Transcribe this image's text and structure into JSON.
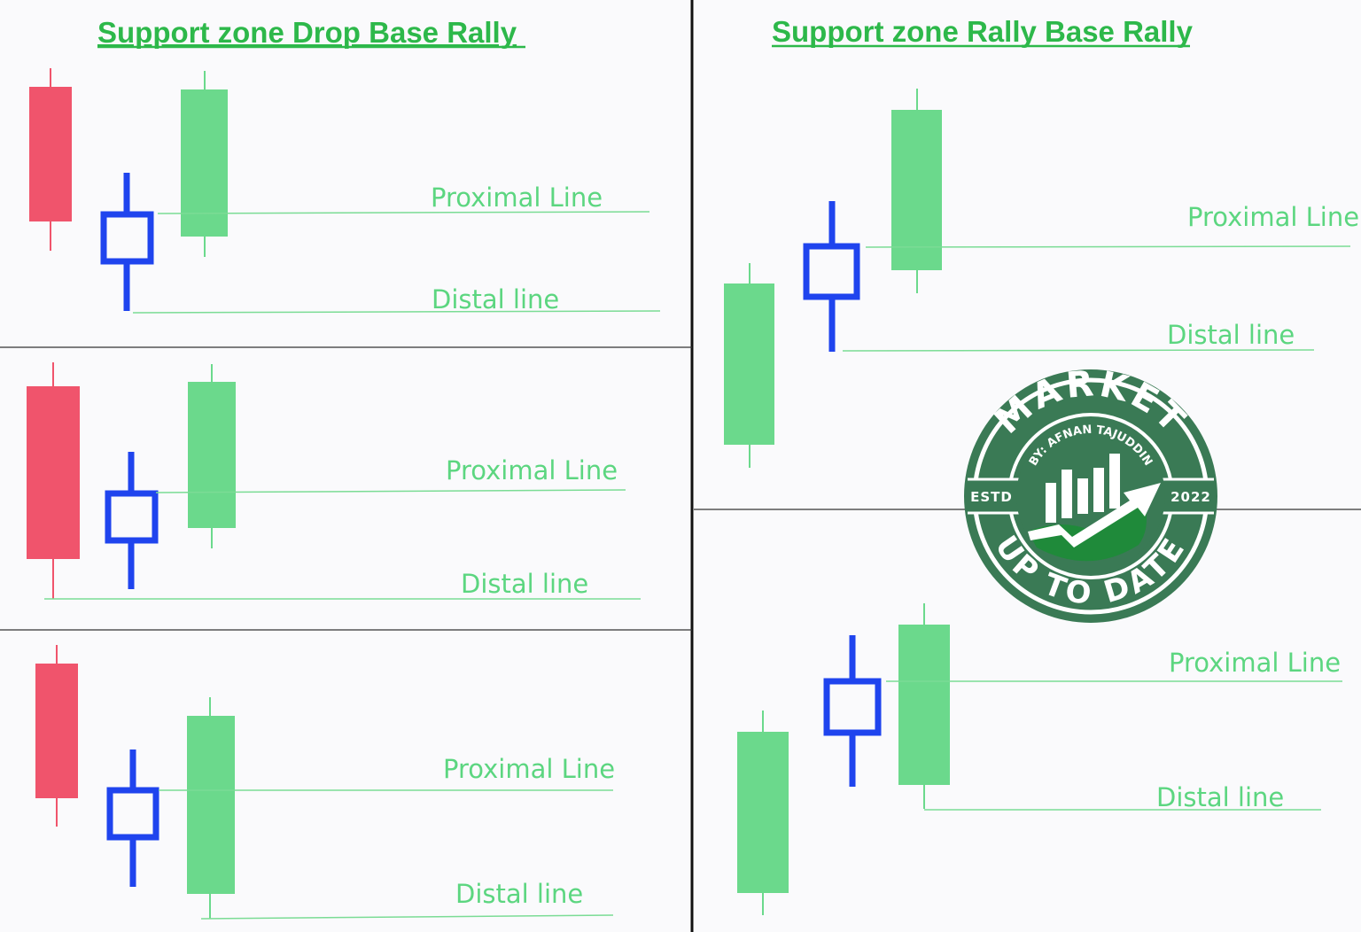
{
  "left_title": "Support zone  Drop Base Rally",
  "right_title": "Support zone Rally Base Rally",
  "labels": {
    "proximal": "Proximal Line",
    "distal": "Distal line"
  },
  "logo": {
    "top_text": "MARKET",
    "author_text": "BY: AFNAN TAJUDDIN",
    "left_text": "ESTD",
    "right_text": "2022",
    "bottom_text": "UP TO DATE"
  },
  "colors": {
    "bearish": "#f0546c",
    "bullish": "#6bd98c",
    "base": "#1f44ee",
    "line": "#7bdc95",
    "title": "#2db84a",
    "logo": "#3a7a55"
  }
}
